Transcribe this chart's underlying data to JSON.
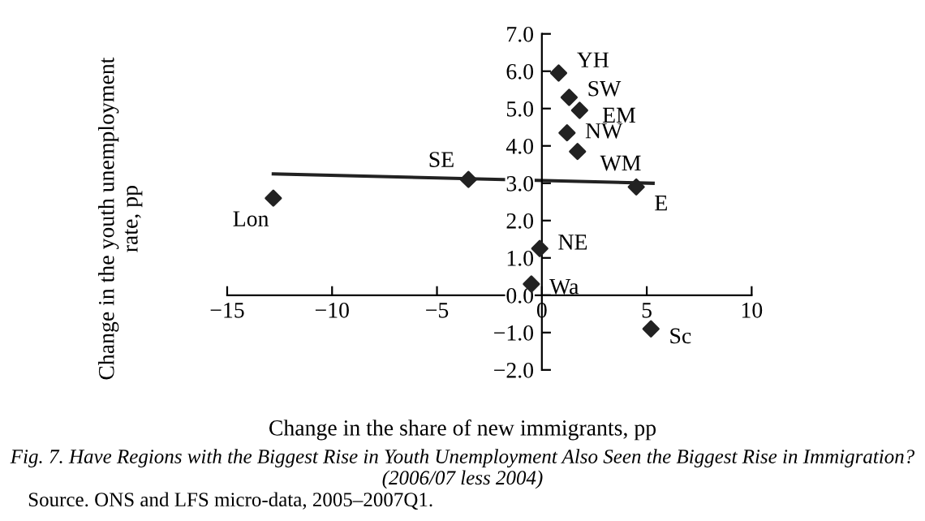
{
  "chart_data": {
    "type": "scatter",
    "xlabel": "Change in the share of new immigrants, pp",
    "ylabel": "Change in the youth unemployment rate, pp",
    "marker": "diamond",
    "grid": false,
    "legend": false,
    "xlim": [
      -15,
      10
    ],
    "ylim": [
      -2,
      7
    ],
    "xticks": [
      {
        "value": -15,
        "label": "−15"
      },
      {
        "value": -10,
        "label": "−10"
      },
      {
        "value": -5,
        "label": "−5"
      },
      0,
      5,
      10
    ],
    "yticks": [
      {
        "value": -2,
        "label": "−2.0"
      },
      {
        "value": -1,
        "label": "−1.0"
      },
      {
        "value": 0,
        "label": "0.0"
      },
      {
        "value": 1,
        "label": "1.0"
      },
      {
        "value": 2,
        "label": "2.0"
      },
      {
        "value": 3,
        "label": "3.0"
      },
      {
        "value": 4,
        "label": "4.0"
      },
      {
        "value": 5,
        "label": "5.0"
      },
      {
        "value": 6,
        "label": "6.0"
      },
      {
        "value": 7,
        "label": "7.0"
      }
    ],
    "series": [
      {
        "color": "#222222",
        "x": [
          0.8,
          1.3,
          1.8,
          1.2,
          1.7,
          -3.5,
          -12.8,
          4.5,
          -0.1,
          -0.5,
          5.2
        ],
        "values": [
          5.95,
          5.3,
          4.95,
          4.35,
          3.85,
          3.1,
          2.6,
          2.9,
          1.25,
          0.3,
          -0.9
        ]
      },
      {
        "type": "line",
        "color": "#222222",
        "marker": "none",
        "line_style": "solid",
        "x": [
          -12.8,
          5.3
        ],
        "values": [
          3.25,
          3.0
        ]
      }
    ],
    "annotations": [
      {
        "text": "YH",
        "x": 0.8,
        "y": 5.95
      },
      {
        "text": "SW",
        "x": 1.3,
        "y": 5.3
      },
      {
        "text": "EM",
        "x": 1.8,
        "y": 4.95
      },
      {
        "text": "NW",
        "x": 1.2,
        "y": 4.35
      },
      {
        "text": "WM",
        "x": 1.7,
        "y": 3.85
      },
      {
        "text": "SE",
        "x": -3.5,
        "y": 3.1
      },
      {
        "text": "Lon",
        "x": -12.8,
        "y": 2.6
      },
      {
        "text": "E",
        "x": 4.5,
        "y": 2.9
      },
      {
        "text": "NE",
        "x": -0.1,
        "y": 1.25
      },
      {
        "text": "Wa",
        "x": -0.5,
        "y": 0.3
      },
      {
        "text": "Sc",
        "x": 5.2,
        "y": -0.9
      },
      "Fig. 7. Have Regions with the Biggest Rise in Youth Unemployment Also Seen the Biggest Rise in Immigration? (2006/07 less 2004)",
      "Source. ONS and LFS micro-data, 2005–2007Q1."
    ]
  }
}
